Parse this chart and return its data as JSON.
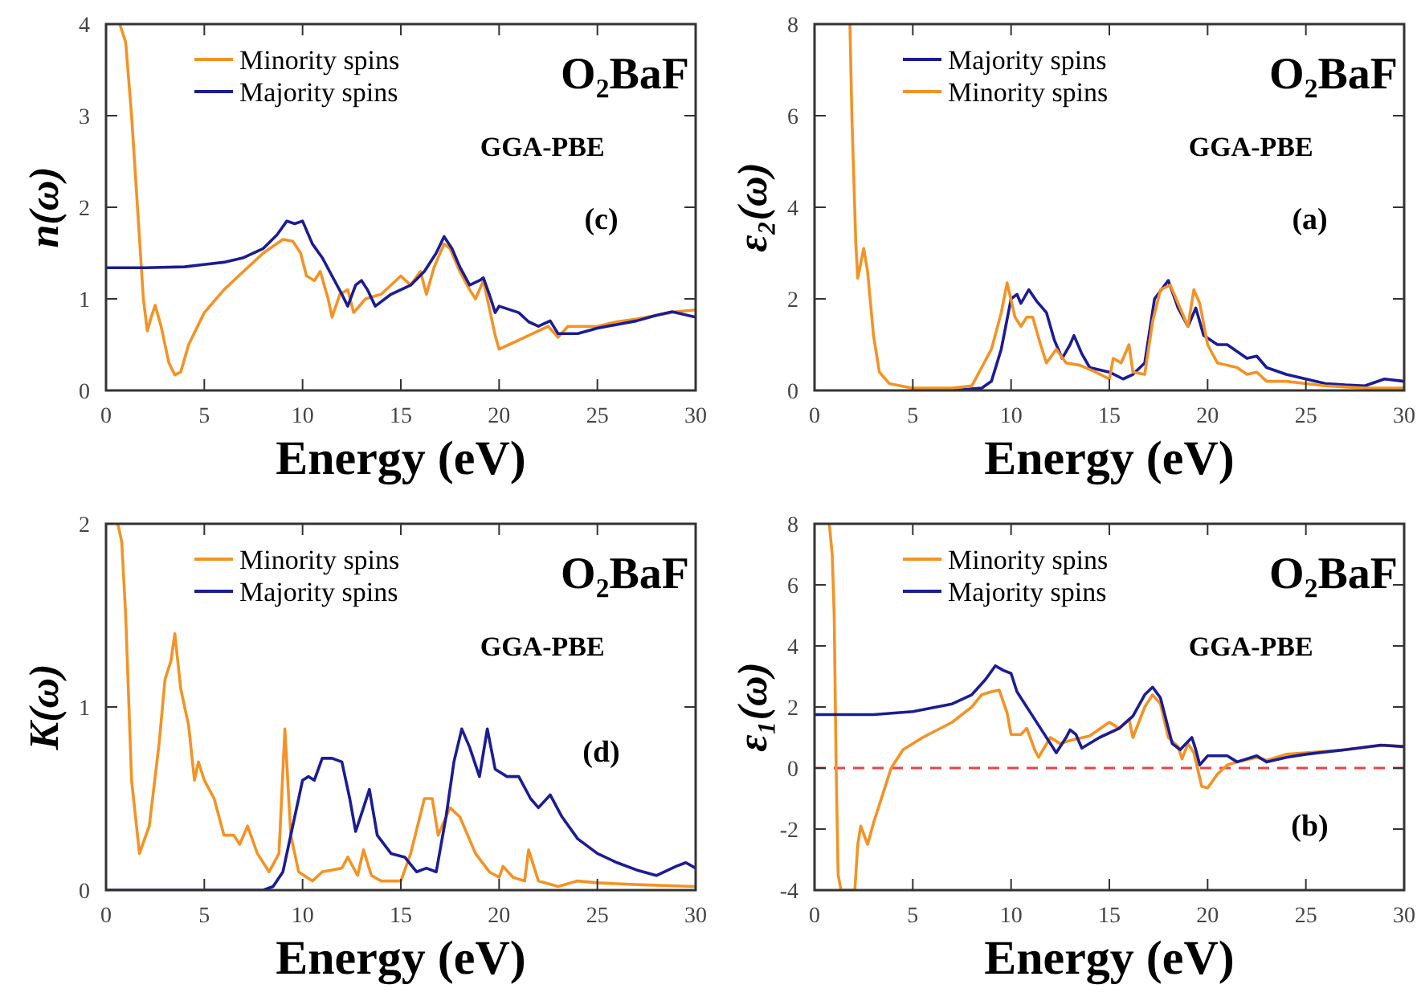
{
  "chart_data": [
    {
      "type": "line",
      "xlabel": "Energy (eV)",
      "ylabel": "n(ω)",
      "xlim": [
        0,
        30
      ],
      "xticks": [
        0,
        5,
        10,
        15,
        20,
        25,
        30
      ],
      "ylim": [
        0,
        4
      ],
      "yticks": [
        0,
        1,
        2,
        3,
        4
      ],
      "legend": "top left",
      "annotations": [
        "O₂BaF",
        "GGA-PBE",
        "(c)"
      ],
      "series": [
        {
          "name": "Minority spins",
          "color": "#f39325",
          "x": [
            0.7,
            1.0,
            1.3,
            1.6,
            1.9,
            2.1,
            2.3,
            2.5,
            2.8,
            3.2,
            3.5,
            3.8,
            4.2,
            5,
            6,
            7,
            8,
            9,
            9.5,
            9.9,
            10.2,
            10.6,
            10.9,
            11.3,
            11.5,
            11.9,
            12.3,
            12.6,
            13.2,
            14,
            15,
            15.5,
            16,
            16.3,
            16.7,
            17.2,
            17.5,
            18,
            18.5,
            18.8,
            19.2,
            19.5,
            19.8,
            20,
            20.5,
            21,
            22,
            22.5,
            23,
            23.5,
            24,
            25,
            26,
            27,
            28,
            29,
            30
          ],
          "values": [
            4,
            3.8,
            3.0,
            2.0,
            1.0,
            0.65,
            0.8,
            0.93,
            0.7,
            0.3,
            0.17,
            0.2,
            0.5,
            0.85,
            1.1,
            1.3,
            1.5,
            1.65,
            1.63,
            1.5,
            1.25,
            1.2,
            1.3,
            1.0,
            0.8,
            1.05,
            1.1,
            0.85,
            1.0,
            1.05,
            1.25,
            1.15,
            1.3,
            1.05,
            1.35,
            1.6,
            1.55,
            1.3,
            1.1,
            1.0,
            1.2,
            0.9,
            0.6,
            0.45,
            0.5,
            0.55,
            0.65,
            0.7,
            0.58,
            0.7,
            0.7,
            0.7,
            0.75,
            0.78,
            0.82,
            0.86,
            0.88
          ]
        },
        {
          "name": "Majority spins",
          "color": "#1c1c94",
          "x": [
            0,
            2,
            4,
            6,
            7,
            8,
            8.7,
            9.2,
            9.6,
            10,
            10.5,
            11,
            11.5,
            12,
            12.3,
            12.7,
            13,
            13.3,
            13.7,
            14.5,
            15.5,
            16.2,
            16.8,
            17.2,
            17.6,
            18,
            18.5,
            19,
            19.2,
            19.5,
            19.8,
            20,
            21,
            21.5,
            22,
            22.6,
            23,
            24,
            25,
            26,
            27,
            28,
            28.8,
            30
          ],
          "values": [
            1.34,
            1.34,
            1.35,
            1.4,
            1.45,
            1.55,
            1.7,
            1.85,
            1.82,
            1.85,
            1.6,
            1.45,
            1.25,
            1.05,
            0.92,
            1.15,
            1.2,
            1.1,
            0.92,
            1.05,
            1.15,
            1.3,
            1.5,
            1.68,
            1.55,
            1.35,
            1.15,
            1.2,
            1.23,
            1.05,
            0.85,
            0.92,
            0.85,
            0.75,
            0.7,
            0.76,
            0.62,
            0.62,
            0.68,
            0.72,
            0.76,
            0.82,
            0.86,
            0.8
          ]
        }
      ]
    },
    {
      "type": "line",
      "xlabel": "Energy (eV)",
      "ylabel": "ε₂(ω)",
      "xlim": [
        0,
        30
      ],
      "xticks": [
        0,
        5,
        10,
        15,
        20,
        25,
        30
      ],
      "ylim": [
        0,
        8
      ],
      "yticks": [
        0,
        2,
        4,
        6,
        8
      ],
      "legend": "top left",
      "annotations": [
        "O₂BaF",
        "GGA-PBE",
        "(a)"
      ],
      "series": [
        {
          "name": "Majority spins",
          "color": "#1c1c94",
          "x": [
            7,
            8.5,
            9,
            9.5,
            10,
            10.3,
            10.5,
            10.9,
            11.3,
            11.8,
            12.2,
            12.6,
            13,
            13.2,
            13.6,
            14,
            15,
            15.7,
            16.2,
            16.8,
            17.3,
            18,
            18.5,
            19,
            19.4,
            19.8,
            20.5,
            21,
            22,
            22.5,
            23,
            24,
            25,
            26,
            27,
            28,
            29,
            30
          ],
          "values": [
            0.0,
            0.05,
            0.2,
            0.9,
            2.0,
            2.1,
            1.9,
            2.2,
            1.95,
            1.7,
            1.1,
            0.7,
            1.0,
            1.2,
            0.8,
            0.5,
            0.4,
            0.25,
            0.35,
            0.6,
            2.0,
            2.4,
            1.8,
            1.4,
            1.8,
            1.2,
            1.0,
            1.0,
            0.7,
            0.75,
            0.5,
            0.35,
            0.25,
            0.15,
            0.12,
            0.1,
            0.25,
            0.2
          ]
        },
        {
          "name": "Minority spins",
          "color": "#f39325",
          "x": [
            1.8,
            1.9,
            2.1,
            2.2,
            2.5,
            2.7,
            3,
            3.3,
            3.8,
            5,
            7,
            8,
            8.5,
            9,
            9.5,
            9.8,
            10.2,
            10.5,
            10.8,
            11.1,
            11.5,
            11.8,
            12.3,
            12.8,
            13.5,
            14.3,
            15,
            15.2,
            15.6,
            16,
            16.2,
            16.8,
            17.2,
            17.6,
            18.1,
            18.5,
            19,
            19.3,
            19.6,
            20,
            20.5,
            21.5,
            22,
            22.5,
            23,
            24,
            25,
            26,
            28,
            30
          ],
          "values": [
            8,
            6,
            3.2,
            2.45,
            3.1,
            2.6,
            1.2,
            0.4,
            0.15,
            0.05,
            0.05,
            0.1,
            0.5,
            0.9,
            1.7,
            2.35,
            1.6,
            1.4,
            1.6,
            1.6,
            1.0,
            0.6,
            0.9,
            0.6,
            0.55,
            0.4,
            0.25,
            0.7,
            0.6,
            1.0,
            0.4,
            0.35,
            1.5,
            2.2,
            2.3,
            1.9,
            1.4,
            2.2,
            1.9,
            1.0,
            0.6,
            0.5,
            0.35,
            0.4,
            0.2,
            0.2,
            0.15,
            0.1,
            0.05,
            0.05
          ]
        }
      ]
    },
    {
      "type": "line",
      "xlabel": "Energy (eV)",
      "ylabel": "K(ω)",
      "xlim": [
        0,
        30
      ],
      "xticks": [
        0,
        5,
        10,
        15,
        20,
        25,
        30
      ],
      "ylim": [
        0,
        2
      ],
      "yticks": [
        0,
        1,
        2
      ],
      "legend": "top left",
      "annotations": [
        "O₂BaF",
        "GGA-PBE",
        "(d)"
      ],
      "series": [
        {
          "name": "Minority spins",
          "color": "#f39325",
          "x": [
            0.6,
            0.8,
            1.0,
            1.3,
            1.7,
            2.2,
            2.7,
            3.0,
            3.3,
            3.5,
            3.8,
            4.2,
            4.5,
            4.7,
            5,
            5.5,
            6,
            6.5,
            6.8,
            7.2,
            7.7,
            8.3,
            8.8,
            9.1,
            9.4,
            9.8,
            10.5,
            11,
            12,
            12.3,
            12.8,
            13.1,
            13.5,
            14,
            15,
            15.5,
            16.2,
            16.6,
            16.9,
            17.5,
            18,
            18.8,
            19.5,
            20,
            20.2,
            20.7,
            21.3,
            21.5,
            22,
            23,
            24,
            25,
            27,
            30
          ],
          "values": [
            2,
            1.9,
            1.5,
            0.6,
            0.2,
            0.35,
            0.8,
            1.15,
            1.25,
            1.4,
            1.1,
            0.9,
            0.6,
            0.7,
            0.6,
            0.5,
            0.3,
            0.3,
            0.25,
            0.35,
            0.2,
            0.1,
            0.2,
            0.88,
            0.3,
            0.1,
            0.05,
            0.1,
            0.12,
            0.18,
            0.08,
            0.22,
            0.08,
            0.05,
            0.05,
            0.2,
            0.5,
            0.5,
            0.3,
            0.45,
            0.4,
            0.2,
            0.1,
            0.07,
            0.13,
            0.07,
            0.05,
            0.22,
            0.05,
            0.02,
            0.05,
            0.04,
            0.03,
            0.02
          ]
        },
        {
          "name": "Majority spins",
          "color": "#1c1c94",
          "x": [
            0,
            8,
            8.5,
            9,
            9.5,
            10,
            10.3,
            10.6,
            11,
            11.5,
            12,
            12.4,
            12.7,
            13.1,
            13.4,
            13.8,
            14.5,
            15.2,
            15.8,
            16.3,
            16.8,
            17.3,
            17.7,
            18.1,
            18.5,
            19,
            19.4,
            19.8,
            20.4,
            21,
            21.6,
            22,
            22.6,
            23.2,
            24,
            25,
            26,
            27,
            28,
            29,
            29.5,
            30
          ],
          "values": [
            0,
            0,
            0.02,
            0.1,
            0.35,
            0.6,
            0.62,
            0.6,
            0.72,
            0.72,
            0.7,
            0.5,
            0.32,
            0.45,
            0.55,
            0.3,
            0.2,
            0.18,
            0.1,
            0.12,
            0.1,
            0.4,
            0.7,
            0.88,
            0.78,
            0.62,
            0.88,
            0.66,
            0.62,
            0.62,
            0.5,
            0.45,
            0.52,
            0.4,
            0.28,
            0.2,
            0.15,
            0.11,
            0.08,
            0.13,
            0.15,
            0.12
          ]
        }
      ]
    },
    {
      "type": "line",
      "xlabel": "Energy (eV)",
      "ylabel": "ε₁(ω)",
      "xlim": [
        0,
        30
      ],
      "xticks": [
        0,
        5,
        10,
        15,
        20,
        25,
        30
      ],
      "ylim": [
        -4,
        8
      ],
      "yticks": [
        -4,
        -2,
        0,
        2,
        4,
        6,
        8
      ],
      "legend": "top left",
      "annotations": [
        "O₂BaF",
        "GGA-PBE",
        "(b)"
      ],
      "ref_lines": [
        {
          "axis": "y",
          "value": 0,
          "color": "#e8434a",
          "line_style": "dashed"
        }
      ],
      "series": [
        {
          "name": "Minority spins",
          "color": "#f39325",
          "x": [
            0.75,
            0.9,
            1.0,
            1.1,
            1.2,
            1.35,
            2.05,
            2.2,
            2.35,
            2.7,
            3.0,
            3.5,
            3.9,
            4.5,
            5.5,
            7,
            8,
            8.5,
            9,
            9.4,
            9.8,
            10,
            10.5,
            10.8,
            11.2,
            11.4,
            12,
            12.5,
            13,
            14,
            15,
            15.5,
            16,
            16.2,
            16.8,
            17.2,
            17.6,
            18,
            18.5,
            18.7,
            19,
            19.3,
            19.7,
            20,
            20.5,
            21,
            21.5,
            22.5,
            23,
            24,
            25,
            27,
            29,
            30
          ],
          "values": [
            8,
            7,
            5,
            0,
            -3.5,
            -4,
            -4,
            -2.5,
            -1.9,
            -2.5,
            -1.8,
            -0.8,
            0,
            0.6,
            1.0,
            1.5,
            2.0,
            2.4,
            2.5,
            2.55,
            1.8,
            1.1,
            1.1,
            1.3,
            0.6,
            0.35,
            1.0,
            0.8,
            0.9,
            1.05,
            1.5,
            1.3,
            1.6,
            1.0,
            2.0,
            2.4,
            2.1,
            1.0,
            0.7,
            0.3,
            0.8,
            0.5,
            -0.6,
            -0.65,
            -0.2,
            0.1,
            0.2,
            0.35,
            0.25,
            0.45,
            0.5,
            0.6,
            0.75,
            0.7
          ]
        },
        {
          "name": "Majority spins",
          "color": "#1c1c94",
          "x": [
            0,
            3,
            5,
            7,
            8,
            8.7,
            9.2,
            9.6,
            10,
            10.3,
            10.7,
            11,
            11.6,
            12.3,
            12.8,
            13,
            13.3,
            13.6,
            14.5,
            15.5,
            16.2,
            16.8,
            17.2,
            17.6,
            18.2,
            18.6,
            19.2,
            19.4,
            19.6,
            20,
            21,
            21.5,
            22.5,
            23,
            24,
            25,
            27,
            28.8,
            30
          ],
          "values": [
            1.75,
            1.75,
            1.85,
            2.1,
            2.4,
            2.9,
            3.35,
            3.2,
            3.1,
            2.5,
            2.1,
            1.8,
            1.2,
            0.5,
            1.0,
            1.25,
            1.1,
            0.65,
            1.0,
            1.3,
            1.7,
            2.4,
            2.65,
            2.3,
            0.8,
            0.6,
            1.0,
            0.6,
            0.1,
            0.4,
            0.4,
            0.2,
            0.4,
            0.2,
            0.35,
            0.45,
            0.6,
            0.75,
            0.7
          ]
        }
      ]
    }
  ]
}
